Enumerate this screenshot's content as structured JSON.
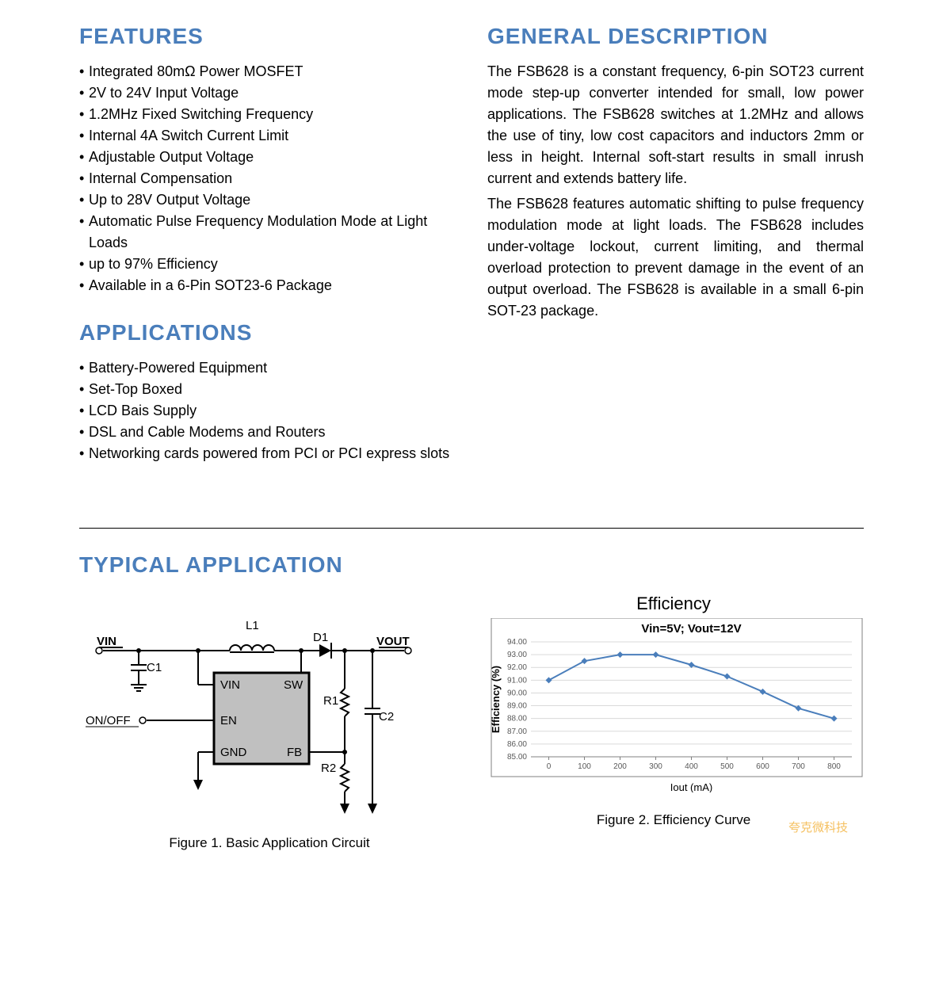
{
  "features": {
    "heading": "FEATURES",
    "items": [
      "Integrated 80mΩ Power MOSFET",
      "2V to 24V Input Voltage",
      "1.2MHz Fixed Switching Frequency",
      "Internal 4A Switch Current Limit",
      "Adjustable Output Voltage",
      "Internal Compensation",
      "Up to 28V Output Voltage",
      "Automatic Pulse Frequency Modulation Mode at Light Loads",
      "up to 97% Efficiency",
      "Available in a 6-Pin SOT23-6 Package"
    ]
  },
  "applications": {
    "heading": "APPLICATIONS",
    "items": [
      "Battery-Powered Equipment",
      "Set-Top Boxed",
      "LCD Bais Supply",
      "DSL and Cable Modems and Routers",
      "Networking cards powered from PCI or PCI express slots"
    ]
  },
  "general": {
    "heading": "GENERAL DESCRIPTION",
    "para1": "The FSB628 is a constant frequency, 6-pin SOT23 current mode step-up converter intended for small, low power applications. The FSB628 switches at 1.2MHz and allows the use of tiny, low cost capacitors and inductors 2mm or less in height. Internal soft-start results in small inrush current and extends battery life.",
    "para2": "The FSB628 features automatic shifting to pulse frequency modulation mode at light loads. The FSB628 includes under-voltage lockout, current limiting, and thermal overload protection to prevent damage in the event of an output overload. The FSB628 is available in a small 6-pin SOT-23 package."
  },
  "typical": {
    "heading": "TYPICAL APPLICATION",
    "caption1": "Figure 1. Basic Application Circuit",
    "caption2": "Figure 2. Efficiency Curve",
    "chart_title": "Efficiency"
  },
  "circuit": {
    "labels": {
      "vin_ext": "VIN",
      "onoff": "ON/OFF",
      "vout": "VOUT",
      "l1": "L1",
      "d1": "D1",
      "c1": "C1",
      "c2": "C2",
      "r1": "R1",
      "r2": "R2",
      "vin_pin": "VIN",
      "sw_pin": "SW",
      "en_pin": "EN",
      "gnd_pin": "GND",
      "fb_pin": "FB"
    },
    "stroke": "#000000",
    "fill_chip": "#c0c0c0",
    "font_size": 15
  },
  "chart": {
    "type": "line",
    "title": "Vin=5V; Vout=12V",
    "title_fontsize": 15,
    "xlabel": "Iout (mA)",
    "ylabel": "Efficiency (%)",
    "label_fontsize": 13,
    "x_ticks": [
      0,
      100,
      200,
      300,
      400,
      500,
      600,
      700,
      800
    ],
    "y_ticks": [
      85.0,
      86.0,
      87.0,
      88.0,
      89.0,
      90.0,
      91.0,
      92.0,
      93.0,
      94.0
    ],
    "xlim": [
      -50,
      850
    ],
    "ylim": [
      85.0,
      94.0
    ],
    "data_x": [
      0,
      100,
      200,
      300,
      400,
      500,
      600,
      700,
      800
    ],
    "data_y": [
      91.0,
      92.5,
      93.0,
      93.0,
      92.2,
      91.3,
      90.1,
      88.8,
      88.0
    ],
    "line_color": "#4a7ebb",
    "marker_color": "#4a7ebb",
    "marker_style": "diamond",
    "marker_size": 4,
    "line_width": 2,
    "grid_color": "#d9d9d9",
    "border_color": "#808080",
    "background_color": "#ffffff",
    "tick_fontsize": 10,
    "tick_color": "#595959"
  },
  "watermark": "夸克微科技",
  "colors": {
    "heading": "#4a7ebb",
    "body_text": "#000000"
  }
}
